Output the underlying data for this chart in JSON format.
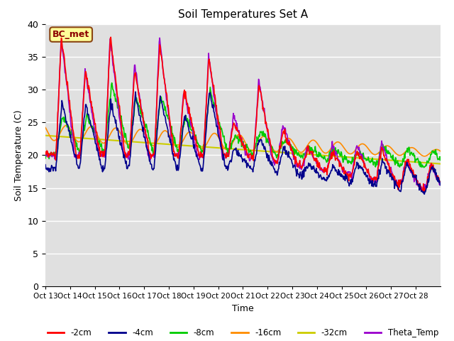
{
  "title": "Soil Temperatures Set A",
  "xlabel": "Time",
  "ylabel": "Soil Temperature (C)",
  "ylim": [
    0,
    40
  ],
  "background_color": "#e0e0e0",
  "annotation": "BC_met",
  "series": {
    "-2cm": {
      "color": "#ff0000",
      "lw": 1.2
    },
    "-4cm": {
      "color": "#00008b",
      "lw": 1.2
    },
    "-8cm": {
      "color": "#00cc00",
      "lw": 1.2
    },
    "-16cm": {
      "color": "#ff8c00",
      "lw": 1.2
    },
    "-32cm": {
      "color": "#cccc00",
      "lw": 1.5
    },
    "Theta_Temp": {
      "color": "#9900cc",
      "lw": 1.2
    }
  },
  "xtick_labels": [
    "Oct 13",
    "Oct 14",
    "Oct 15",
    "Oct 16",
    "Oct 17",
    "Oct 18",
    "Oct 19",
    "Oct 20",
    "Oct 21",
    "Oct 22",
    "Oct 23",
    "Oct 24",
    "Oct 25",
    "Oct 26",
    "Oct 27",
    "Oct 28"
  ],
  "legend_order": [
    "-2cm",
    "-4cm",
    "-8cm",
    "-16cm",
    "-32cm",
    "Theta_Temp"
  ]
}
